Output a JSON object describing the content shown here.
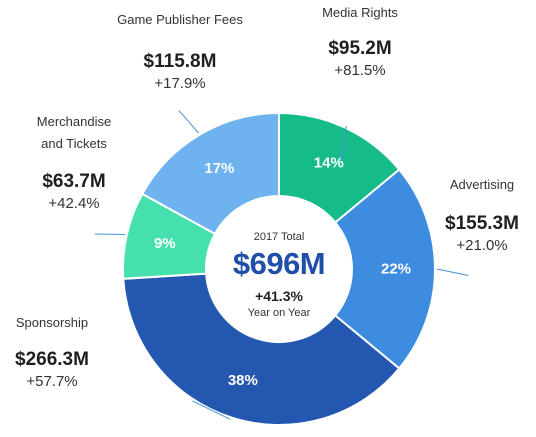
{
  "chart_data": {
    "type": "pie",
    "variant": "donut",
    "legend": "none",
    "center": {
      "label": "2017 Total",
      "value": "$696M",
      "change": "+41.3%",
      "sublabel": "Year on Year"
    },
    "slices": [
      {
        "name": "Media Rights",
        "share": 14,
        "share_label": "14%",
        "value_label": "$95.2M",
        "value": 95.2,
        "change": "+81.5%",
        "color": "#16bb8a"
      },
      {
        "name": "Advertising",
        "share": 22,
        "share_label": "22%",
        "value_label": "$155.3M",
        "value": 155.3,
        "change": "+21.0%",
        "color": "#3d8ce0"
      },
      {
        "name": "Sponsorship",
        "share": 38,
        "share_label": "38%",
        "value_label": "$266.3M",
        "value": 266.3,
        "change": "+57.7%",
        "color": "#2357b0"
      },
      {
        "name": "Merchandise and Tickets",
        "name_lines": [
          "Merchandise",
          "and Tickets"
        ],
        "share": 9,
        "share_label": "9%",
        "value_label": "$63.7M",
        "value": 63.7,
        "change": "+42.4%",
        "color": "#45e0ad"
      },
      {
        "name": "Game Publisher Fees",
        "share": 17,
        "share_label": "17%",
        "value_label": "$115.8M",
        "value": 115.8,
        "change": "+17.9%",
        "color": "#6eb2f0"
      }
    ],
    "leader_color": "#4a90d9"
  }
}
